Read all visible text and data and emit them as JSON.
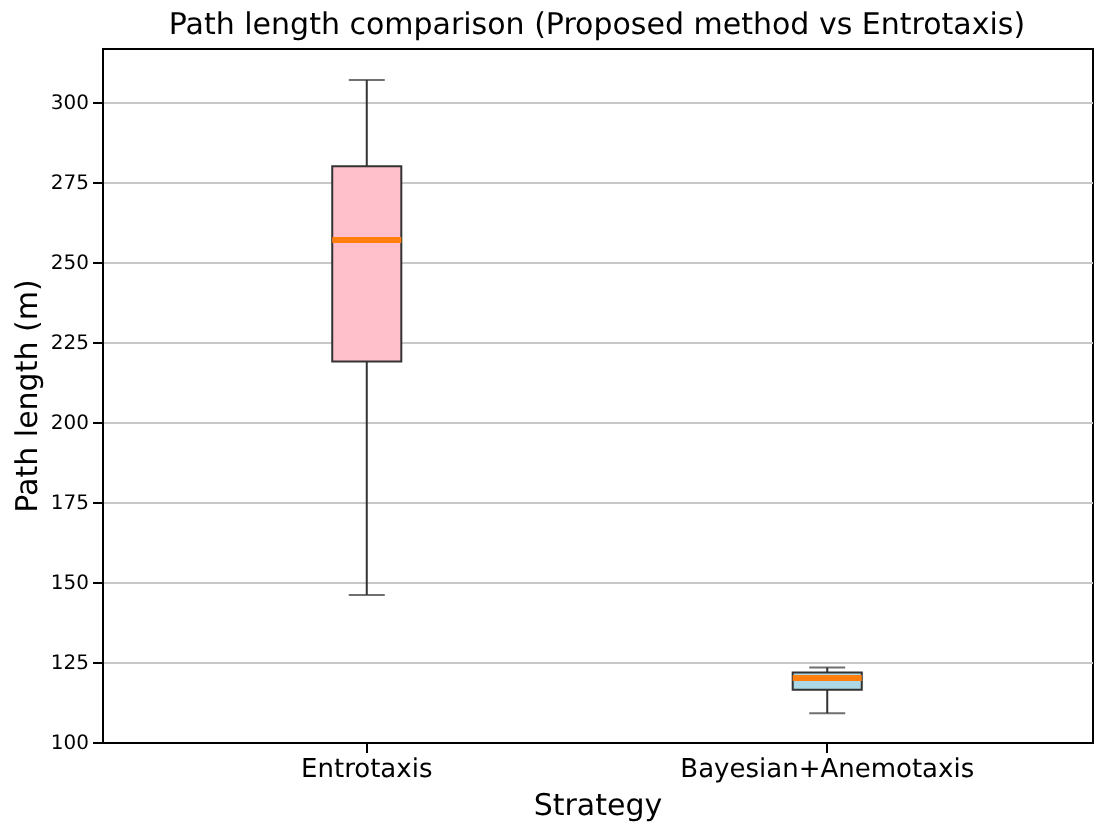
{
  "chart_data": {
    "type": "box",
    "title": "Path length comparison (Proposed method vs Entrotaxis)",
    "xlabel": "Strategy",
    "ylabel": "Path length (m)",
    "categories": [
      "Entrotaxis",
      "Bayesian+Anemotaxis"
    ],
    "colors": [
      "#ffc0cb",
      "#add8e6"
    ],
    "boxes": [
      {
        "low": 146,
        "q1": 219,
        "median": 257,
        "q3": 280,
        "high": 307
      },
      {
        "low": 109,
        "q1": 116.3,
        "median": 120,
        "q3": 121.7,
        "high": 123.3
      }
    ],
    "ylim": [
      100,
      317
    ],
    "yticks": [
      100,
      125,
      150,
      175,
      200,
      225,
      250,
      275,
      300
    ],
    "grid": "y"
  }
}
